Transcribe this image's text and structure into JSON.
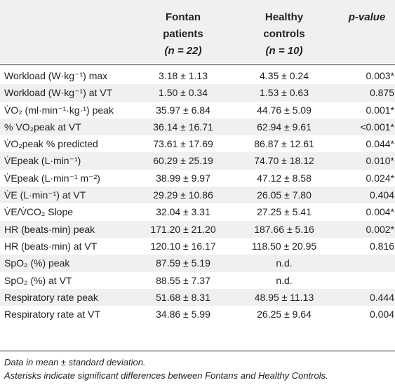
{
  "header": {
    "col1_line1": "Fontan",
    "col1_line2": "patients",
    "col1_n": "(n = 22)",
    "col2_line1": "Healthy",
    "col2_line2": "controls",
    "col2_n": "(n = 10)",
    "col3": "p-value"
  },
  "rows": [
    {
      "label": "Workload (W·kg⁻¹) max",
      "fontan": "3.18 ± 1.13",
      "healthy": "4.35 ± 0.24",
      "p": "0.003*"
    },
    {
      "label": "Workload (W·kg⁻¹) at VT",
      "fontan": "1.50 ± 0.34",
      "healthy": "1.53 ± 0.63",
      "p": "0.875"
    },
    {
      "label": "V̇O₂ (ml·min⁻¹·kg·¹) peak",
      "fontan": "35.97 ± 6.84",
      "healthy": "44.76 ± 5.09",
      "p": "0.001*"
    },
    {
      "label": "% VO₂peak at VT",
      "fontan": "36.14 ± 16.71",
      "healthy": "62.94 ± 9.61",
      "p": "<0.001*"
    },
    {
      "label": "V̇O₂peak % predicted",
      "fontan": "73.61 ± 17.69",
      "healthy": "86.87 ± 12.61",
      "p": "0.044*"
    },
    {
      "label": "V̇Epeak (L·min⁻¹)",
      "fontan": "60.29 ± 25.19",
      "healthy": "74.70 ± 18.12",
      "p": "0.010*"
    },
    {
      "label": "V̇Epeak (L·min⁻¹ m⁻²)",
      "fontan": "38.99 ± 9.97",
      "healthy": "47.12 ± 8.58",
      "p": "0.024*"
    },
    {
      "label": "V̇E (L·min⁻¹) at VT",
      "fontan": "29.29 ± 10.86",
      "healthy": "26.05 ± 7.80",
      "p": "0.404"
    },
    {
      "label": "V̇E/V̇CO₂ Slope",
      "fontan": "32.04 ± 3.31",
      "healthy": "27.25 ± 5.41",
      "p": "0.004*"
    },
    {
      "label": "HR (beats·min) peak",
      "fontan": "171.20 ± 21.20",
      "healthy": "187.66 ± 5.16",
      "p": "0.002*"
    },
    {
      "label": "HR (beats·min) at VT",
      "fontan": "120.10 ± 16.17",
      "healthy": "118.50 ± 20.95",
      "p": "0.816"
    },
    {
      "label": "SpO₂ (%) peak",
      "fontan": "87.59 ± 5.19",
      "healthy": "n.d.",
      "p": ""
    },
    {
      "label": "SpO₂ (%) at VT",
      "fontan": "88.55 ± 7.37",
      "healthy": "n.d.",
      "p": ""
    },
    {
      "label": "Respiratory rate peak",
      "fontan": "51.68 ± 8.31",
      "healthy": "48.95 ± 11.13",
      "p": "0.444"
    },
    {
      "label": "Respiratory rate at VT",
      "fontan": "34.86 ± 5.99",
      "healthy": "26.25 ± 9.64",
      "p": "0.004"
    }
  ],
  "footnotes": {
    "line1": "Data in mean ± standard deviation.",
    "line2": "Asterisks indicate significant differences between Fontans and Healthy Controls."
  }
}
